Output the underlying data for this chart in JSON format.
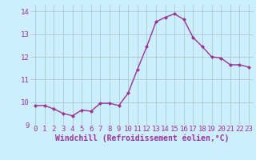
{
  "x": [
    0,
    1,
    2,
    3,
    4,
    5,
    6,
    7,
    8,
    9,
    10,
    11,
    12,
    13,
    14,
    15,
    16,
    17,
    18,
    19,
    20,
    21,
    22,
    23
  ],
  "y": [
    9.85,
    9.85,
    9.7,
    9.5,
    9.4,
    9.65,
    9.6,
    9.95,
    9.95,
    9.85,
    10.4,
    11.45,
    12.45,
    13.55,
    13.75,
    13.9,
    13.65,
    12.85,
    12.45,
    12.0,
    11.95,
    11.65,
    11.65,
    11.55
  ],
  "line_color": "#993399",
  "marker": "D",
  "marker_size": 2.0,
  "bg_color": "#cceeff",
  "grid_color": "#aacccc",
  "xlabel": "Windchill (Refroidissement éolien,°C)",
  "xlabel_color": "#993399",
  "tick_color": "#993399",
  "ylim": [
    9.0,
    14.3
  ],
  "xlim": [
    -0.5,
    23.5
  ],
  "yticks": [
    9,
    10,
    11,
    12,
    13,
    14
  ],
  "xticks": [
    0,
    1,
    2,
    3,
    4,
    5,
    6,
    7,
    8,
    9,
    10,
    11,
    12,
    13,
    14,
    15,
    16,
    17,
    18,
    19,
    20,
    21,
    22,
    23
  ],
  "tick_fontsize": 6.5,
  "xlabel_fontsize": 7.0,
  "linewidth": 1.0
}
